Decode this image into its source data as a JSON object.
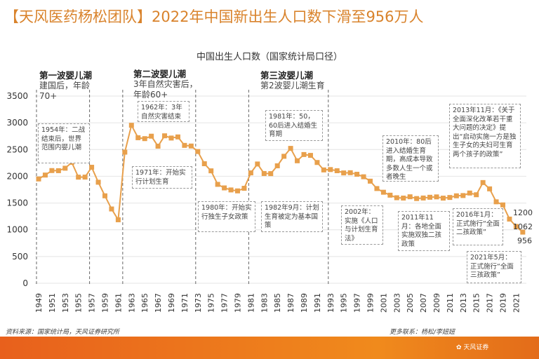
{
  "header": {
    "title": "【天风医药杨松团队】2022年中国新出生人口数下滑至956万人"
  },
  "chart_data": {
    "type": "line",
    "title": "中国出生人口数（国家统计局口径）",
    "ylim": [
      0,
      3500
    ],
    "yticks": [
      0,
      500,
      1000,
      1500,
      2000,
      2500,
      3000,
      3500
    ],
    "xticks": [
      "1949",
      "1951",
      "1953",
      "1955",
      "1957",
      "1959",
      "1961",
      "1963",
      "1965",
      "1967",
      "1969",
      "1971",
      "1973",
      "1975",
      "1977",
      "1979",
      "1981",
      "1983",
      "1985",
      "1987",
      "1989",
      "1991",
      "1993",
      "1995",
      "1997",
      "1999",
      "2001",
      "2003",
      "2005",
      "2007",
      "2009",
      "2011",
      "2013",
      "2015",
      "2017",
      "2019",
      "2021"
    ],
    "grid": true,
    "color": "#e8a04c",
    "x": [
      1949,
      1950,
      1951,
      1952,
      1953,
      1954,
      1955,
      1956,
      1957,
      1958,
      1959,
      1960,
      1961,
      1962,
      1963,
      1964,
      1965,
      1966,
      1967,
      1968,
      1969,
      1970,
      1971,
      1972,
      1973,
      1974,
      1975,
      1976,
      1977,
      1978,
      1979,
      1980,
      1981,
      1982,
      1983,
      1984,
      1985,
      1986,
      1987,
      1988,
      1989,
      1990,
      1991,
      1992,
      1993,
      1994,
      1995,
      1996,
      1997,
      1998,
      1999,
      2000,
      2001,
      2002,
      2003,
      2004,
      2005,
      2006,
      2007,
      2008,
      2009,
      2010,
      2011,
      2012,
      2013,
      2014,
      2015,
      2016,
      2017,
      2018,
      2019,
      2020,
      2021,
      2022
    ],
    "values": [
      1950,
      2023,
      2107,
      2105,
      2151,
      2260,
      1984,
      1985,
      2169,
      1889,
      1635,
      1389,
      1187,
      2451,
      2954,
      2721,
      2704,
      2750,
      2563,
      2757,
      2715,
      2736,
      2578,
      2566,
      2463,
      2235,
      2102,
      1849,
      1783,
      1745,
      1727,
      1776,
      2064,
      2230,
      2052,
      2050,
      2196,
      2374,
      2522,
      2290,
      2407,
      2391,
      2258,
      2119,
      2126,
      2104,
      2063,
      2067,
      2038,
      1991,
      1909,
      1771,
      1702,
      1647,
      1599,
      1593,
      1617,
      1584,
      1594,
      1608,
      1615,
      1592,
      1604,
      1635,
      1640,
      1687,
      1655,
      1883,
      1765,
      1523,
      1465,
      1200,
      1062,
      956
    ],
    "end_labels": [
      "1200",
      "1062",
      "956"
    ],
    "dividers": [
      1949,
      1957,
      1962,
      1973,
      1981,
      1993
    ],
    "waves": [
      {
        "name": "第一波婴儿潮",
        "desc1": "建国后，年龄",
        "desc2": "70+"
      },
      {
        "name": "第二波婴儿潮",
        "desc1": "3年自然灾害后，",
        "desc2": "年龄60+"
      },
      {
        "name": "第三波婴儿潮",
        "desc1": "第2波婴儿潮生育",
        "desc2": ""
      }
    ],
    "annotations": [
      "1954年：二战结束后，世界范围内婴儿潮",
      "1962年：3年自然灾害结束",
      "1971年：开始实行计划生育",
      "1980年：开始实行独生子女政策",
      "1981年：50，60后进入结婚生育期",
      "1982年9月：计划生育被定为基本国策",
      "2002年：实施《人口与计划生育法》",
      "2010年：80后进入结婚生育期，高成本导致多数人生一个或者晚生",
      "2011年11月：各地全面实施双独二孩政策",
      "2013年11月：《关于全面深化改革若干重大问题的决定》提出“启动实施一方是独生子女的夫妇可生育两个孩子的政策”",
      "2016年1月：正式施行“全面二孩政策”",
      "2021年5月：正式施行“全面三孩政策”"
    ]
  },
  "footer": {
    "source": "资料来源：国家统计局，天风证券研究所",
    "contact": "更多联系：杨松/李妞妞",
    "logo": "天风证券"
  }
}
